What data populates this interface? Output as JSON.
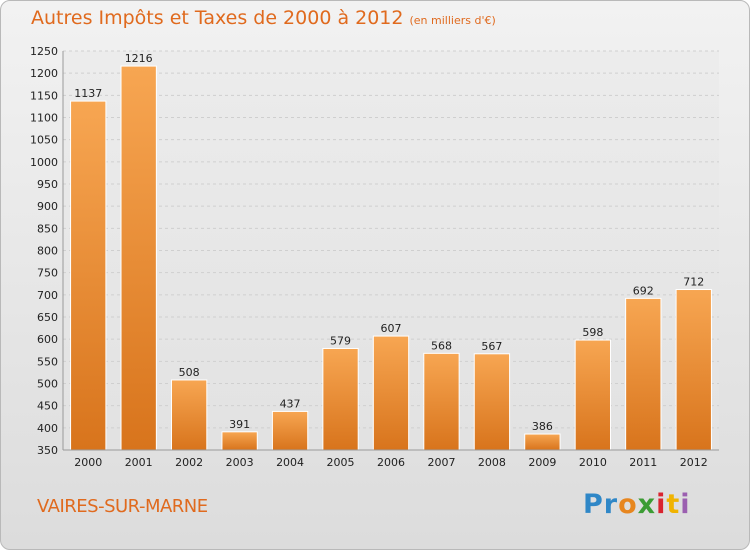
{
  "chart_data": {
    "type": "bar",
    "title": "Autres Impôts et Taxes de 2000 à 2012",
    "subtitle": "(en milliers d'€)",
    "categories": [
      "2000",
      "2001",
      "2002",
      "2003",
      "2004",
      "2005",
      "2006",
      "2007",
      "2008",
      "2009",
      "2010",
      "2011",
      "2012"
    ],
    "values": [
      1137,
      1216,
      508,
      391,
      437,
      579,
      607,
      568,
      567,
      386,
      598,
      692,
      712
    ],
    "ylim": [
      350,
      1250
    ],
    "yticks": [
      350,
      400,
      450,
      500,
      550,
      600,
      650,
      700,
      750,
      800,
      850,
      900,
      950,
      1000,
      1050,
      1100,
      1150,
      1200,
      1250
    ],
    "grid": true,
    "bar_color": "#e98a2f"
  },
  "footer": {
    "city": "VAIRES-SUR-MARNE",
    "logo": [
      "Pr",
      "o",
      "x",
      "i",
      "t",
      "i"
    ]
  }
}
